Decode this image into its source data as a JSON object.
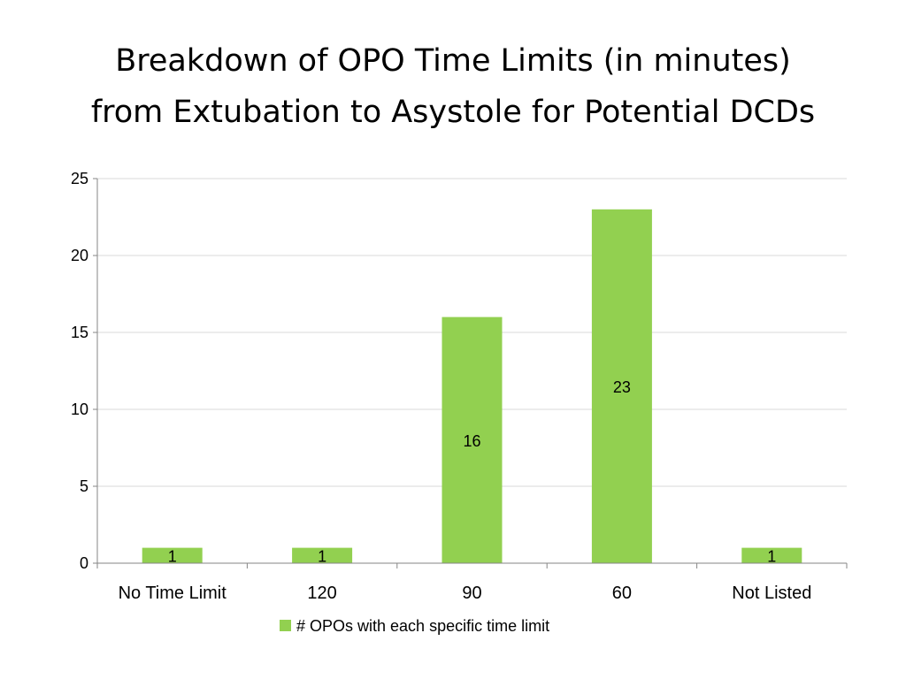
{
  "title": {
    "line1": "Breakdown of OPO Time Limits (in minutes)",
    "line2": "from Extubation to Asystole for Potential DCDs"
  },
  "colors": {
    "bar": "#92D050",
    "grid": "#D9D9D9",
    "axis": "#868686",
    "text": "#000000"
  },
  "chart_data": {
    "type": "bar",
    "categories": [
      "No Time Limit",
      "120",
      "90",
      "60",
      "Not Listed"
    ],
    "series": [
      {
        "name": "# OPOs with each specific time limit",
        "values": [
          1,
          1,
          16,
          23,
          1
        ]
      }
    ],
    "data_labels": [
      "1",
      "1",
      "16",
      "23",
      "1"
    ],
    "ylim": [
      0,
      25
    ],
    "yticks": [
      0,
      5,
      10,
      15,
      20,
      25
    ],
    "grid": true,
    "legend": "bottom",
    "xlabel": "",
    "ylabel": ""
  }
}
